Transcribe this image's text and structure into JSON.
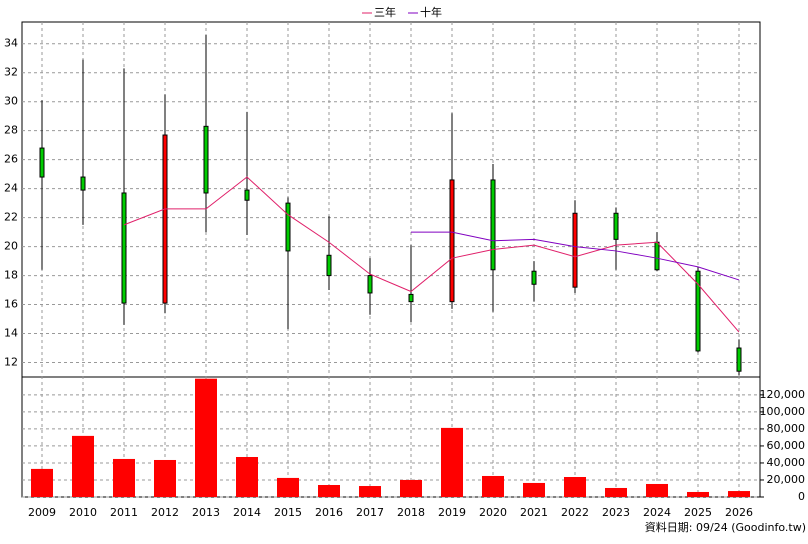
{
  "chart_data": {
    "type": "candlestick",
    "categories": [
      "2009",
      "2010",
      "2011",
      "2012",
      "2013",
      "2014",
      "2015",
      "2016",
      "2017",
      "2018",
      "2019",
      "2020",
      "2021",
      "2022",
      "2023",
      "2024",
      "2025",
      "2026"
    ],
    "open": [
      26.8,
      24.8,
      23.7,
      16.1,
      28.3,
      23.9,
      23.0,
      19.4,
      18.0,
      16.7,
      16.2,
      24.6,
      18.3,
      17.2,
      22.3,
      20.3,
      18.3,
      13.0
    ],
    "high": [
      30.1,
      32.9,
      32.3,
      30.5,
      34.6,
      29.3,
      23.4,
      22.1,
      19.2,
      20.1,
      29.2,
      25.7,
      19.0,
      23.2,
      22.7,
      21.0,
      18.6,
      13.6
    ],
    "low": [
      18.4,
      21.5,
      14.6,
      15.4,
      21.0,
      20.8,
      14.3,
      17.0,
      15.3,
      14.8,
      15.7,
      15.5,
      16.2,
      16.8,
      18.4,
      18.3,
      12.7,
      11.1
    ],
    "close": [
      24.8,
      23.9,
      16.1,
      27.7,
      23.7,
      23.2,
      19.7,
      18.0,
      16.8,
      16.2,
      24.6,
      18.4,
      17.4,
      22.3,
      20.5,
      18.4,
      12.8,
      11.4
    ],
    "up_color": "#ff0000",
    "down_color": "#00cc00",
    "series": [
      {
        "name": "三年",
        "color": "#e0206a",
        "values": [
          null,
          null,
          21.5,
          22.6,
          22.6,
          24.8,
          22.2,
          20.3,
          18.1,
          16.9,
          19.2,
          19.8,
          20.1,
          19.3,
          20.1,
          20.3,
          17.4,
          14.1
        ]
      },
      {
        "name": "十年",
        "color": "#8000c0",
        "values": [
          null,
          null,
          null,
          null,
          null,
          null,
          null,
          null,
          null,
          21.0,
          21.0,
          20.4,
          20.5,
          20.0,
          19.7,
          19.2,
          18.6,
          17.7
        ]
      }
    ],
    "ylim": [
      11.0,
      35.5
    ],
    "yticks": [
      12,
      14,
      16,
      18,
      20,
      22,
      24,
      26,
      28,
      30,
      32,
      34
    ],
    "volume": {
      "color": "#ff0000",
      "values": [
        33000,
        71800,
        44700,
        43500,
        139000,
        47000,
        22400,
        14100,
        12900,
        20000,
        81200,
        24700,
        16500,
        23500,
        10600,
        15300,
        5900,
        7000
      ],
      "ylim": [
        0,
        141000
      ],
      "yticks": [
        0,
        {
          "value": 20000,
          "label": "20,000"
        },
        {
          "value": 40000,
          "label": "40,000"
        },
        {
          "value": 60000,
          "label": "60,000"
        },
        {
          "value": 80000,
          "label": "80,000"
        },
        {
          "value": 100000,
          "label": "100,000"
        },
        {
          "value": 120000,
          "label": "120,000"
        }
      ]
    },
    "grid": true,
    "footer": "資料日期: 09/24  (Goodinfo.tw)"
  }
}
